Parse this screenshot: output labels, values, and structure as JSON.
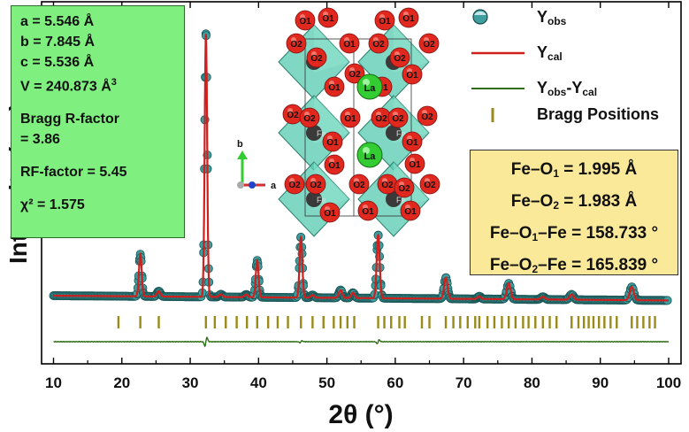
{
  "chart_data": {
    "type": "line",
    "xlabel": "2θ (°)",
    "ylabel": "Intensity (a.u)",
    "xlim": [
      10,
      100
    ],
    "x_ticks": [
      10,
      20,
      30,
      40,
      50,
      60,
      70,
      80,
      90,
      100
    ],
    "y_ticks_shown": false,
    "legend_position": "top-right",
    "legend": [
      {
        "key": "obs",
        "label": "Y",
        "sub": "obs",
        "style": "circle-markers",
        "color": "#3f9ea0"
      },
      {
        "key": "cal",
        "label": "Y",
        "sub": "cal",
        "style": "line",
        "color": "#d0201e"
      },
      {
        "key": "diff",
        "label": "Y",
        "sub": "obs",
        "label2": "-Y",
        "sub2": "cal",
        "style": "line",
        "color": "#2e6e14"
      },
      {
        "key": "bragg",
        "label": "Bragg Positions",
        "style": "tick",
        "color": "#9a8a1a"
      }
    ],
    "background_level": 0,
    "peaks": [
      {
        "x": 22.7,
        "height": 0.16,
        "width": 0.2
      },
      {
        "x": 25.4,
        "height": 0.02,
        "width": 0.25
      },
      {
        "x": 32.3,
        "height": 1.0,
        "width": 0.18
      },
      {
        "x": 34.5,
        "height": 0.01,
        "width": 0.25
      },
      {
        "x": 38.2,
        "height": 0.01,
        "width": 0.25
      },
      {
        "x": 39.8,
        "height": 0.14,
        "width": 0.2
      },
      {
        "x": 46.2,
        "height": 0.23,
        "width": 0.2
      },
      {
        "x": 47.9,
        "height": 0.01,
        "width": 0.25
      },
      {
        "x": 52.0,
        "height": 0.03,
        "width": 0.25
      },
      {
        "x": 53.8,
        "height": 0.02,
        "width": 0.25
      },
      {
        "x": 57.5,
        "height": 0.24,
        "width": 0.22
      },
      {
        "x": 67.4,
        "height": 0.08,
        "width": 0.25
      },
      {
        "x": 72.3,
        "height": 0.01,
        "width": 0.25
      },
      {
        "x": 76.6,
        "height": 0.06,
        "width": 0.28
      },
      {
        "x": 81.6,
        "height": 0.01,
        "width": 0.3
      },
      {
        "x": 85.8,
        "height": 0.02,
        "width": 0.3
      },
      {
        "x": 94.6,
        "height": 0.05,
        "width": 0.3
      }
    ],
    "bragg_positions": [
      19.5,
      22.7,
      25.4,
      32.3,
      33.6,
      35.2,
      36.8,
      38.3,
      39.8,
      41.4,
      42.8,
      44.3,
      46.2,
      47.9,
      49.5,
      51.0,
      52.0,
      53.0,
      54.0,
      57.5,
      58.4,
      59.4,
      60.6,
      61.4,
      63.9,
      65.0,
      67.4,
      68.5,
      69.5,
      70.6,
      71.7,
      72.3,
      73.5,
      74.5,
      75.6,
      76.6,
      77.6,
      78.7,
      79.5,
      80.5,
      81.6,
      82.6,
      83.6,
      85.8,
      86.8,
      87.6,
      88.3,
      89.0,
      89.8,
      90.6,
      91.5,
      92.4,
      94.6,
      95.4,
      96.3,
      97.2,
      98.0
    ],
    "difference_features": [
      {
        "x": 32.3,
        "amplitude": 0.09
      },
      {
        "x": 57.5,
        "amplitude": 0.04
      },
      {
        "x": 46.2,
        "amplitude": 0.02
      }
    ],
    "obs_marker_start": 10,
    "obs_marker_end": 100,
    "colors": {
      "obs": "#3f9ea0",
      "cal": "#d0201e",
      "diff": "#2e6e14",
      "bragg": "#9a8a1a"
    }
  },
  "lattice": {
    "a": "a = 5.546 Å",
    "b": "b = 7.845 Å",
    "c": "c = 5.536 Å",
    "v": "V = 240.873 Å",
    "v_sup": "3",
    "bragg_line1": "Bragg R-factor",
    "bragg_line2": "= 3.86",
    "rf": "RF-factor = 5.45",
    "chi": "χ² = 1.575"
  },
  "bonds": [
    {
      "pre": "Fe–O",
      "sub": "1",
      "post": " = 1.995 Å"
    },
    {
      "pre": "Fe–O",
      "sub": "2",
      "post": " = 1.983 Å"
    },
    {
      "pre": "Fe–O",
      "sub": "1",
      "post": "–Fe = 158.733 °"
    },
    {
      "pre": "Fe–O",
      "sub": "2",
      "post": "–Fe = 165.839 °"
    }
  ],
  "structure": {
    "axis_b": "b",
    "axis_a": "a",
    "atom_o1": "O1",
    "atom_o2": "O2",
    "atom_la": "La",
    "atom_fe": "Fe",
    "colors": {
      "oxygen": "#e0281e",
      "lanthanum": "#33cc33",
      "octahedron": "#55c9b0",
      "iron": "#3a3a3a"
    }
  }
}
